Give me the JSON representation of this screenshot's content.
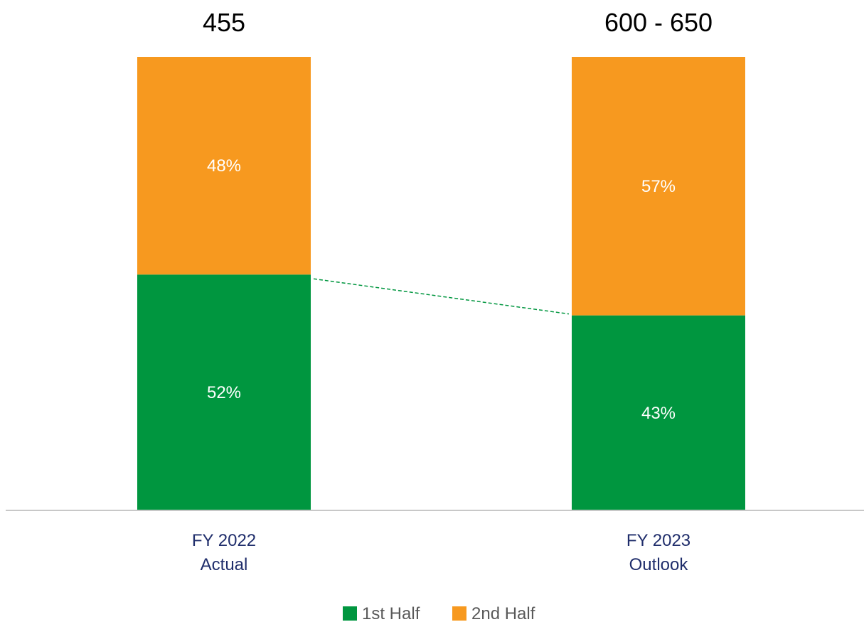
{
  "chart_data": {
    "type": "bar",
    "stacked": true,
    "normalized": true,
    "categories": [
      [
        "FY 2022",
        "Actual"
      ],
      [
        "FY 2023",
        "Outlook"
      ]
    ],
    "totals": [
      "455",
      "600 - 650"
    ],
    "series": [
      {
        "name": "1st Half",
        "values": [
          52,
          43
        ],
        "labels": [
          "52%",
          "43%"
        ],
        "color": "#00963f"
      },
      {
        "name": "2nd Half",
        "values": [
          48,
          57
        ],
        "labels": [
          "48%",
          "57%"
        ],
        "color": "#f7991f"
      }
    ],
    "connector": {
      "series": "1st Half",
      "style": "dashed",
      "color": "#00963f"
    },
    "axis_color": "#c8c8c8",
    "category_label_color": "#1f2d6b",
    "legend": {
      "position": "bottom",
      "label_color": "#595959"
    },
    "grid": false
  }
}
